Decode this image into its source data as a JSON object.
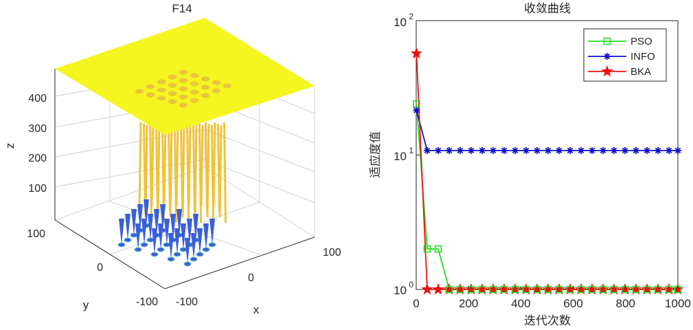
{
  "left_plot": {
    "title": "F14",
    "type": "surface",
    "xlabel": "x",
    "ylabel": "y",
    "zlabel": "z",
    "x_ticks": [
      "-100",
      "0",
      "100"
    ],
    "y_ticks": [
      "-100",
      "0",
      "100"
    ],
    "z_ticks": [
      "100",
      "200",
      "300",
      "400"
    ],
    "surface_color": "#f5f520",
    "spike_color": "#f0c23a",
    "base_color": "#3a5fd8"
  },
  "chart_data": {
    "type": "line",
    "title": "收敛曲线",
    "xlabel": "迭代次数",
    "ylabel": "适应度值",
    "yscale": "log",
    "xlim": [
      0,
      1000
    ],
    "ylim": [
      1,
      100
    ],
    "x_ticks": [
      "0",
      "200",
      "400",
      "600",
      "800",
      "1000"
    ],
    "y_ticks": [
      {
        "base": "10",
        "exp": "0",
        "value": 1
      },
      {
        "base": "10",
        "exp": "1",
        "value": 10
      },
      {
        "base": "10",
        "exp": "2",
        "value": 100
      }
    ],
    "legend_position": "top-right",
    "series": [
      {
        "name": "PSO",
        "color": "#22dd22",
        "marker": "square",
        "x": [
          1,
          42,
          84,
          126,
          168,
          210,
          252,
          294,
          336,
          378,
          420,
          462,
          504,
          546,
          588,
          630,
          672,
          714,
          756,
          798,
          840,
          882,
          924,
          966,
          1000
        ],
        "y": [
          24,
          2,
          2,
          1,
          1,
          1,
          1,
          1,
          1,
          1,
          1,
          1,
          1,
          1,
          1,
          1,
          1,
          1,
          1,
          1,
          1,
          1,
          1,
          1,
          1
        ]
      },
      {
        "name": "INFO",
        "color": "#1010cc",
        "marker": "asterisk",
        "x": [
          1,
          42,
          84,
          126,
          168,
          210,
          252,
          294,
          336,
          378,
          420,
          462,
          504,
          546,
          588,
          630,
          672,
          714,
          756,
          798,
          840,
          882,
          924,
          966,
          1000
        ],
        "y": [
          21.5,
          10.8,
          10.8,
          10.8,
          10.8,
          10.8,
          10.8,
          10.8,
          10.8,
          10.8,
          10.8,
          10.8,
          10.8,
          10.8,
          10.8,
          10.8,
          10.8,
          10.8,
          10.8,
          10.8,
          10.8,
          10.8,
          10.8,
          10.8,
          10.8
        ]
      },
      {
        "name": "BKA",
        "color": "#ee1111",
        "marker": "star",
        "x": [
          1,
          42,
          84,
          126,
          168,
          210,
          252,
          294,
          336,
          378,
          420,
          462,
          504,
          546,
          588,
          630,
          672,
          714,
          756,
          798,
          840,
          882,
          924,
          966,
          1000
        ],
        "y": [
          57,
          1,
          1,
          1,
          1,
          1,
          1,
          1,
          1,
          1,
          1,
          1,
          1,
          1,
          1,
          1,
          1,
          1,
          1,
          1,
          1,
          1,
          1,
          1,
          1
        ]
      }
    ]
  }
}
